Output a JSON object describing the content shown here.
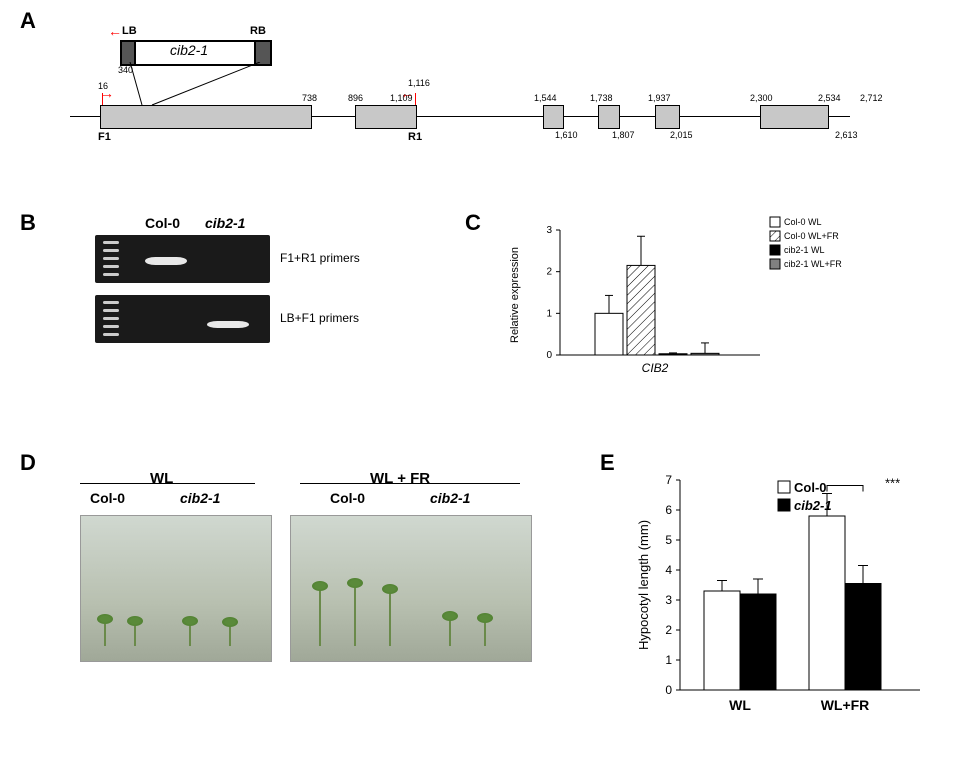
{
  "panels": {
    "A": "A",
    "B": "B",
    "C": "C",
    "D": "D",
    "E": "E"
  },
  "diagramA": {
    "insert_label": "cib2-1",
    "LB": "LB",
    "RB": "RB",
    "insert_left_num": "340",
    "F1": "F1",
    "R1": "R1",
    "f1_num": "16",
    "r1_top": "1,116",
    "r1_bottom": "1,109",
    "exon_nums_top": [
      "738",
      "896",
      "1,544",
      "1,738",
      "1,937",
      "2,300",
      "2,534",
      "2,712"
    ],
    "exon_nums_bottom": [
      "1,610",
      "1,807",
      "2,015",
      "2,613"
    ]
  },
  "panelB": {
    "col0": "Col-0",
    "cib21": "cib2-1",
    "lane1": "F1+R1 primers",
    "lane2": "LB+F1 primers"
  },
  "chartC": {
    "ylabel": "Relative expression",
    "xlabel": "CIB2",
    "yticks": [
      "0",
      "1",
      "2",
      "3"
    ],
    "legend": [
      "Col-0 WL",
      "Col-0 WL+FR",
      "cib2-1 WL",
      "cib2-1 WL+FR"
    ],
    "vals": [
      1.0,
      2.15,
      0.03,
      0.04
    ],
    "errs": [
      0.43,
      0.7,
      0.02,
      0.25
    ],
    "colors": [
      "#ffffff",
      "hatched",
      "#000000",
      "#808080"
    ],
    "ymax": 3
  },
  "panelD": {
    "WL": "WL",
    "WLFR": "WL + FR",
    "col0": "Col-0",
    "cib21": "cib2-1"
  },
  "chartE": {
    "ylabel": "Hypocotyl length (mm)",
    "xticks": [
      "WL",
      "WL+FR"
    ],
    "yticks": [
      "0",
      "1",
      "2",
      "3",
      "4",
      "5",
      "6",
      "7"
    ],
    "legend": [
      "Col-0",
      "cib2-1"
    ],
    "legend_colors": [
      "#ffffff",
      "#000000"
    ],
    "groups": [
      {
        "vals": [
          3.3,
          3.2
        ],
        "errs": [
          0.35,
          0.5
        ]
      },
      {
        "vals": [
          5.8,
          3.55
        ],
        "errs": [
          0.75,
          0.6
        ]
      }
    ],
    "ymax": 7,
    "sig": "***"
  }
}
